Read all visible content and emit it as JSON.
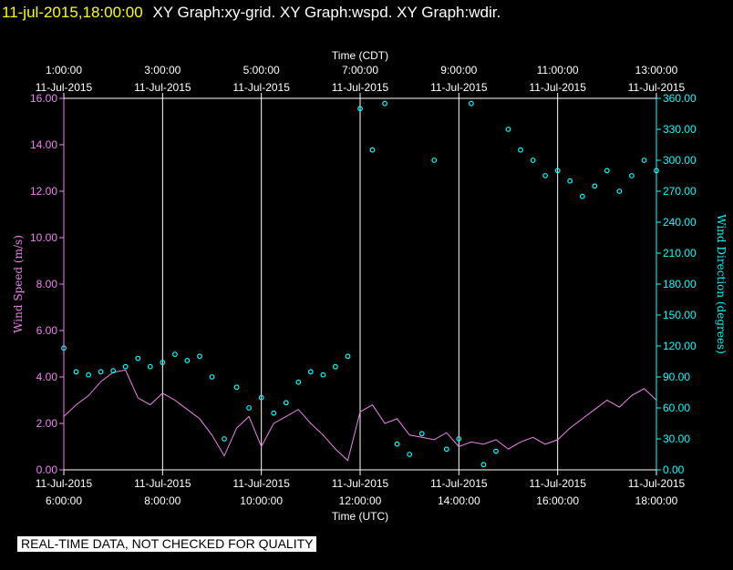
{
  "header": {
    "timestamp": "11-jul-2015,18:00:00",
    "titles": "XY Graph:xy-grid.  XY Graph:wspd.  XY Graph:wdir."
  },
  "disclaimer": "REAL-TIME DATA, NOT CHECKED FOR QUALITY",
  "chart_data": {
    "type": "line+scatter",
    "top_axis": {
      "title": "Time (CDT)",
      "ticks": [
        {
          "time": "1:00:00",
          "date": "11-Jul-2015"
        },
        {
          "time": "3:00:00",
          "date": "11-Jul-2015"
        },
        {
          "time": "5:00:00",
          "date": "11-Jul-2015"
        },
        {
          "time": "7:00:00",
          "date": "11-Jul-2015"
        },
        {
          "time": "9:00:00",
          "date": "11-Jul-2015"
        },
        {
          "time": "11:00:00",
          "date": "11-Jul-2015"
        },
        {
          "time": "13:00:00",
          "date": "11-Jul-2015"
        }
      ]
    },
    "bottom_axis": {
      "title": "Time (UTC)",
      "ticks": [
        {
          "date": "11-Jul-2015",
          "time": "6:00:00"
        },
        {
          "date": "11-Jul-2015",
          "time": "8:00:00"
        },
        {
          "date": "11-Jul-2015",
          "time": "10:00:00"
        },
        {
          "date": "11-Jul-2015",
          "time": "12:00:00"
        },
        {
          "date": "11-Jul-2015",
          "time": "14:00:00"
        },
        {
          "date": "11-Jul-2015",
          "time": "16:00:00"
        },
        {
          "date": "11-Jul-2015",
          "time": "18:00:00"
        }
      ],
      "range_hours_utc": [
        6,
        18
      ]
    },
    "left_axis": {
      "title": "Wind Speed (m/s)",
      "color": "#ee82ee",
      "range": [
        0,
        16
      ],
      "ticks": [
        "0.00",
        "2.00",
        "4.00",
        "6.00",
        "8.00",
        "10.00",
        "12.00",
        "14.00",
        "16.00"
      ]
    },
    "right_axis": {
      "title": "Wind Direction (degrees)",
      "color": "#00ffff",
      "range": [
        0,
        360
      ],
      "ticks": [
        "0.00",
        "30.00",
        "60.00",
        "90.00",
        "120.00",
        "150.00",
        "180.00",
        "210.00",
        "240.00",
        "270.00",
        "300.00",
        "330.00",
        "360.00"
      ]
    },
    "grid": {
      "vertical": true,
      "horizontal": false
    },
    "series": [
      {
        "name": "Wind Speed (m/s)",
        "type": "line",
        "color": "#ee82ee",
        "hours_utc": [
          6.0,
          6.25,
          6.5,
          6.75,
          7.0,
          7.25,
          7.5,
          7.75,
          8.0,
          8.25,
          8.5,
          8.75,
          9.0,
          9.25,
          9.5,
          9.75,
          10.0,
          10.25,
          10.5,
          10.75,
          11.0,
          11.25,
          11.5,
          11.75,
          12.0,
          12.25,
          12.5,
          12.75,
          13.0,
          13.25,
          13.5,
          13.75,
          14.0,
          14.25,
          14.5,
          14.75,
          15.0,
          15.25,
          15.5,
          15.75,
          16.0,
          16.25,
          16.5,
          16.75,
          17.0,
          17.25,
          17.5,
          17.75,
          18.0
        ],
        "values": [
          2.3,
          2.8,
          3.2,
          3.8,
          4.2,
          4.3,
          3.1,
          2.8,
          3.3,
          3.0,
          2.6,
          2.2,
          1.5,
          0.6,
          1.8,
          2.3,
          1.0,
          2.0,
          2.3,
          2.6,
          2.0,
          1.5,
          0.9,
          0.4,
          2.5,
          2.8,
          2.0,
          2.2,
          1.5,
          1.4,
          1.3,
          1.6,
          1.0,
          1.2,
          1.1,
          1.3,
          0.9,
          1.2,
          1.4,
          1.1,
          1.3,
          1.8,
          2.2,
          2.6,
          3.0,
          2.7,
          3.2,
          3.5,
          3.0
        ]
      },
      {
        "name": "Wind Direction (degrees)",
        "type": "scatter",
        "color": "#00ffff",
        "hours_utc": [
          6.0,
          6.25,
          6.5,
          6.75,
          7.0,
          7.25,
          7.5,
          7.75,
          8.0,
          8.25,
          8.5,
          8.75,
          9.0,
          9.25,
          9.5,
          9.75,
          10.0,
          10.25,
          10.5,
          10.75,
          11.0,
          11.25,
          11.5,
          11.75,
          12.0,
          12.25,
          12.5,
          12.75,
          13.0,
          13.25,
          13.5,
          13.75,
          14.0,
          14.25,
          14.5,
          14.75,
          15.0,
          15.25,
          15.5,
          15.75,
          16.0,
          16.25,
          16.5,
          16.75,
          17.0,
          17.25,
          17.5,
          17.75,
          18.0
        ],
        "values": [
          118,
          95,
          92,
          95,
          96,
          100,
          108,
          100,
          104,
          112,
          106,
          110,
          90,
          30,
          80,
          60,
          70,
          55,
          65,
          85,
          95,
          92,
          100,
          110,
          350,
          310,
          355,
          25,
          15,
          35,
          300,
          20,
          30,
          355,
          5,
          18,
          330,
          310,
          300,
          285,
          290,
          280,
          265,
          275,
          290,
          270,
          285,
          300,
          290
        ]
      }
    ]
  }
}
